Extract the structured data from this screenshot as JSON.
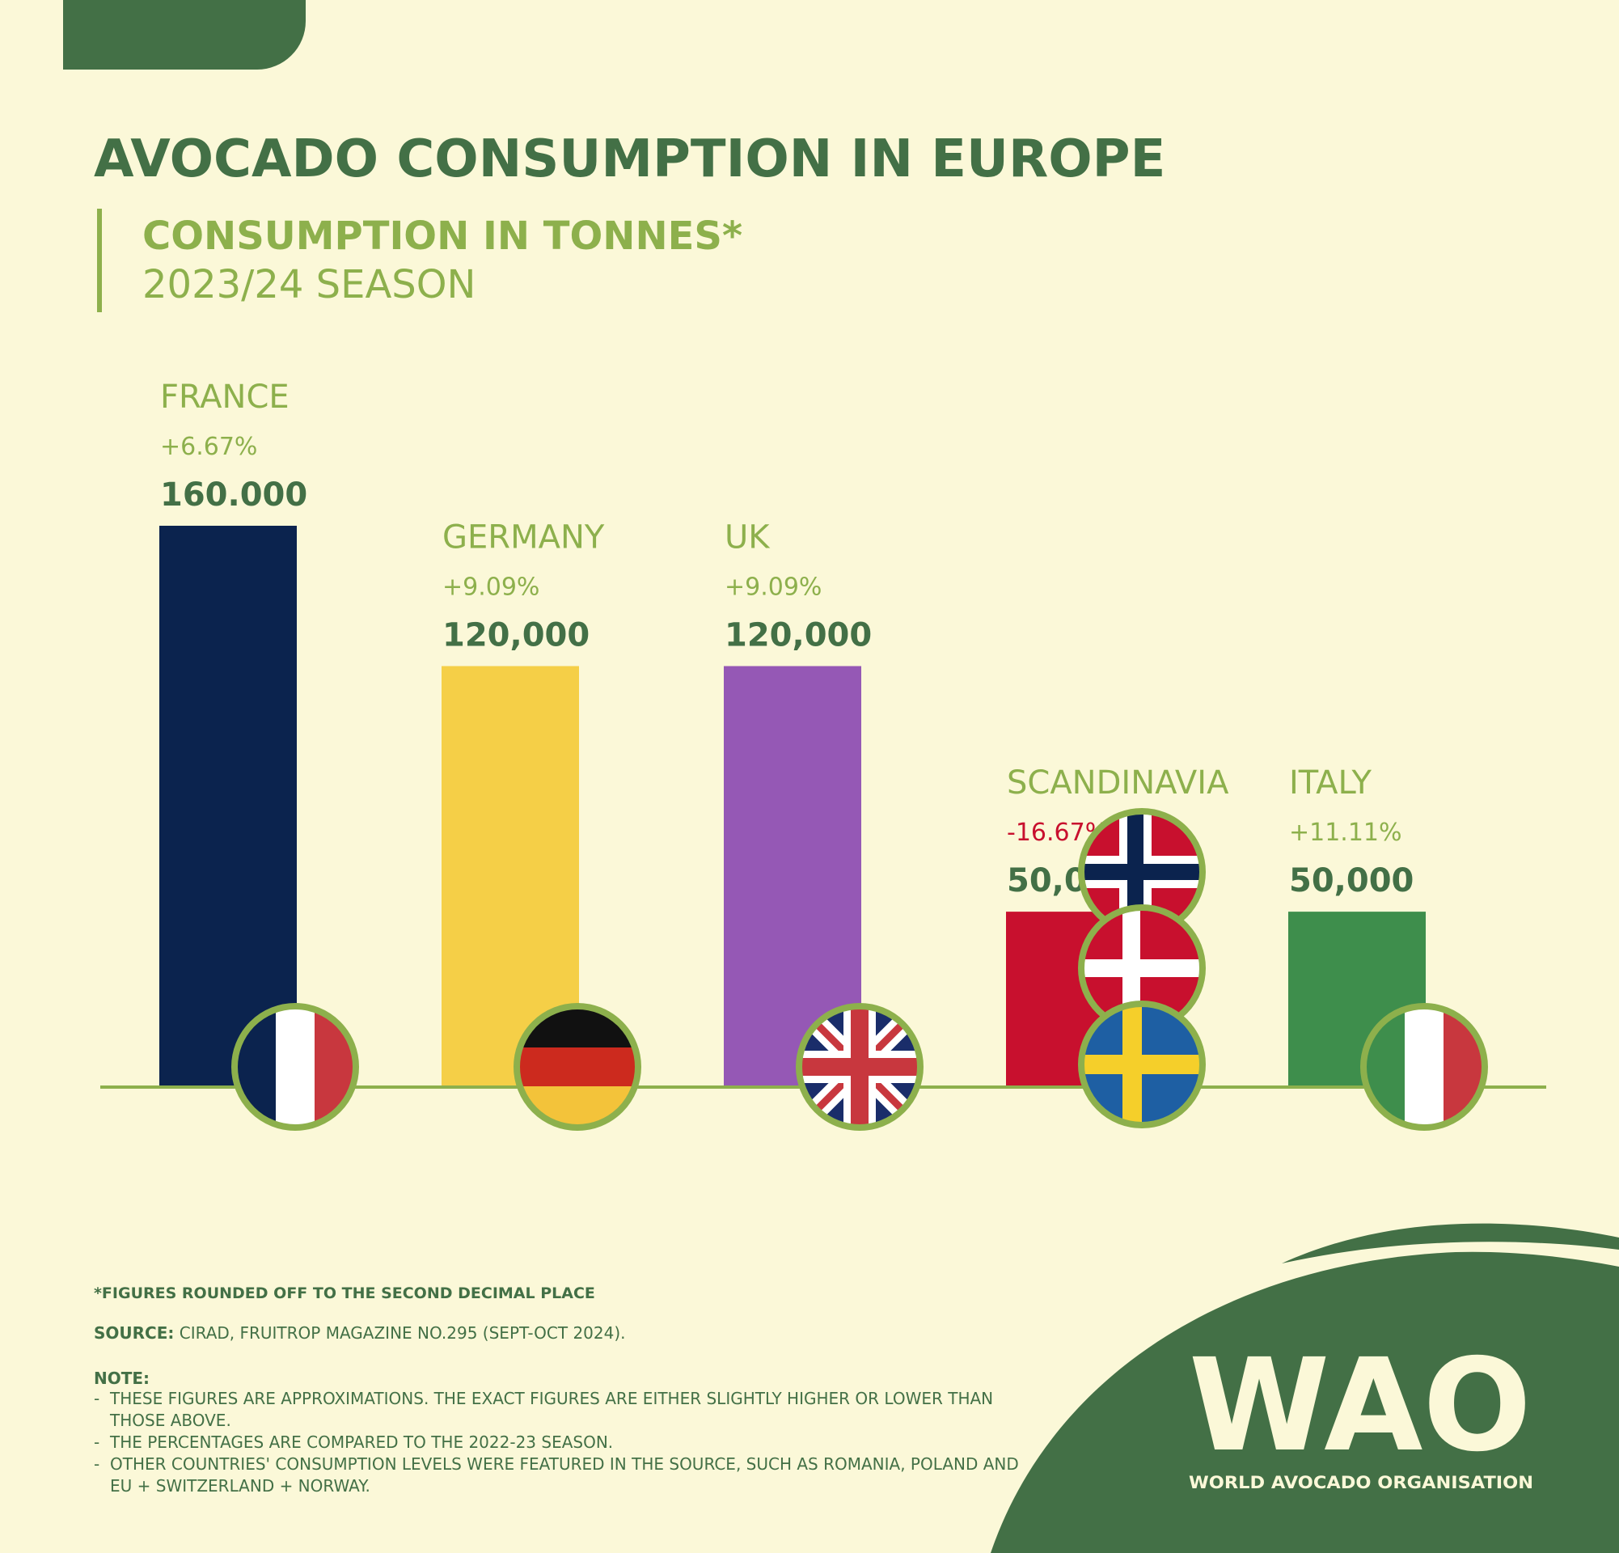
{
  "header": {
    "title": "AVOCADO CONSUMPTION IN EUROPE",
    "subtitle": "CONSUMPTION IN TONNES*",
    "season": "2023/24 SEASON"
  },
  "colors": {
    "background": "#fbf8d8",
    "dark_green": "#437046",
    "light_green": "#8db04c",
    "negative_red": "#c8102e"
  },
  "chart_data": {
    "type": "bar",
    "title": "CONSUMPTION IN TONNES*",
    "categories": [
      "FRANCE",
      "GERMANY",
      "UK",
      "SCANDINAVIA",
      "ITALY"
    ],
    "values": [
      160000,
      120000,
      120000,
      50000,
      50000
    ],
    "value_labels": [
      "160.000",
      "120,000",
      "120,000",
      "50,000",
      "50,000"
    ],
    "change_labels": [
      "+6.67%",
      "+9.09%",
      "+9.09%",
      "-16.67%",
      "+11.11%"
    ],
    "bar_colors": [
      "#0b234e",
      "#f5cf47",
      "#9558b5",
      "#c8102e",
      "#3e8e4c"
    ],
    "flags": [
      [
        "france-flag-icon"
      ],
      [
        "germany-flag-icon"
      ],
      [
        "uk-flag-icon"
      ],
      [
        "norway-flag-icon",
        "denmark-flag-icon",
        "sweden-flag-icon"
      ],
      [
        "italy-flag-icon"
      ]
    ],
    "ylim": [
      0,
      160000
    ],
    "grid": false,
    "legend": "none"
  },
  "footer": {
    "footnote": "*FIGURES ROUNDED OFF TO THE SECOND DECIMAL PLACE",
    "source_label": "SOURCE:",
    "source_text": " CIRAD, FRUITROP MAGAZINE NO.295 (SEPT-OCT 2024).",
    "note_label": "NOTE:",
    "notes": [
      "THESE FIGURES ARE APPROXIMATIONS. THE EXACT FIGURES ARE EITHER SLIGHTLY HIGHER OR LOWER THAN THOSE ABOVE.",
      "THE PERCENTAGES ARE COMPARED TO THE 2022-23 SEASON.",
      "OTHER COUNTRIES' CONSUMPTION LEVELS WERE FEATURED IN THE SOURCE, SUCH AS ROMANIA, POLAND AND EU + SWITZERLAND + NORWAY."
    ]
  },
  "logo": {
    "mark": "WAO",
    "text": "WORLD AVOCADO ORGANISATION"
  }
}
